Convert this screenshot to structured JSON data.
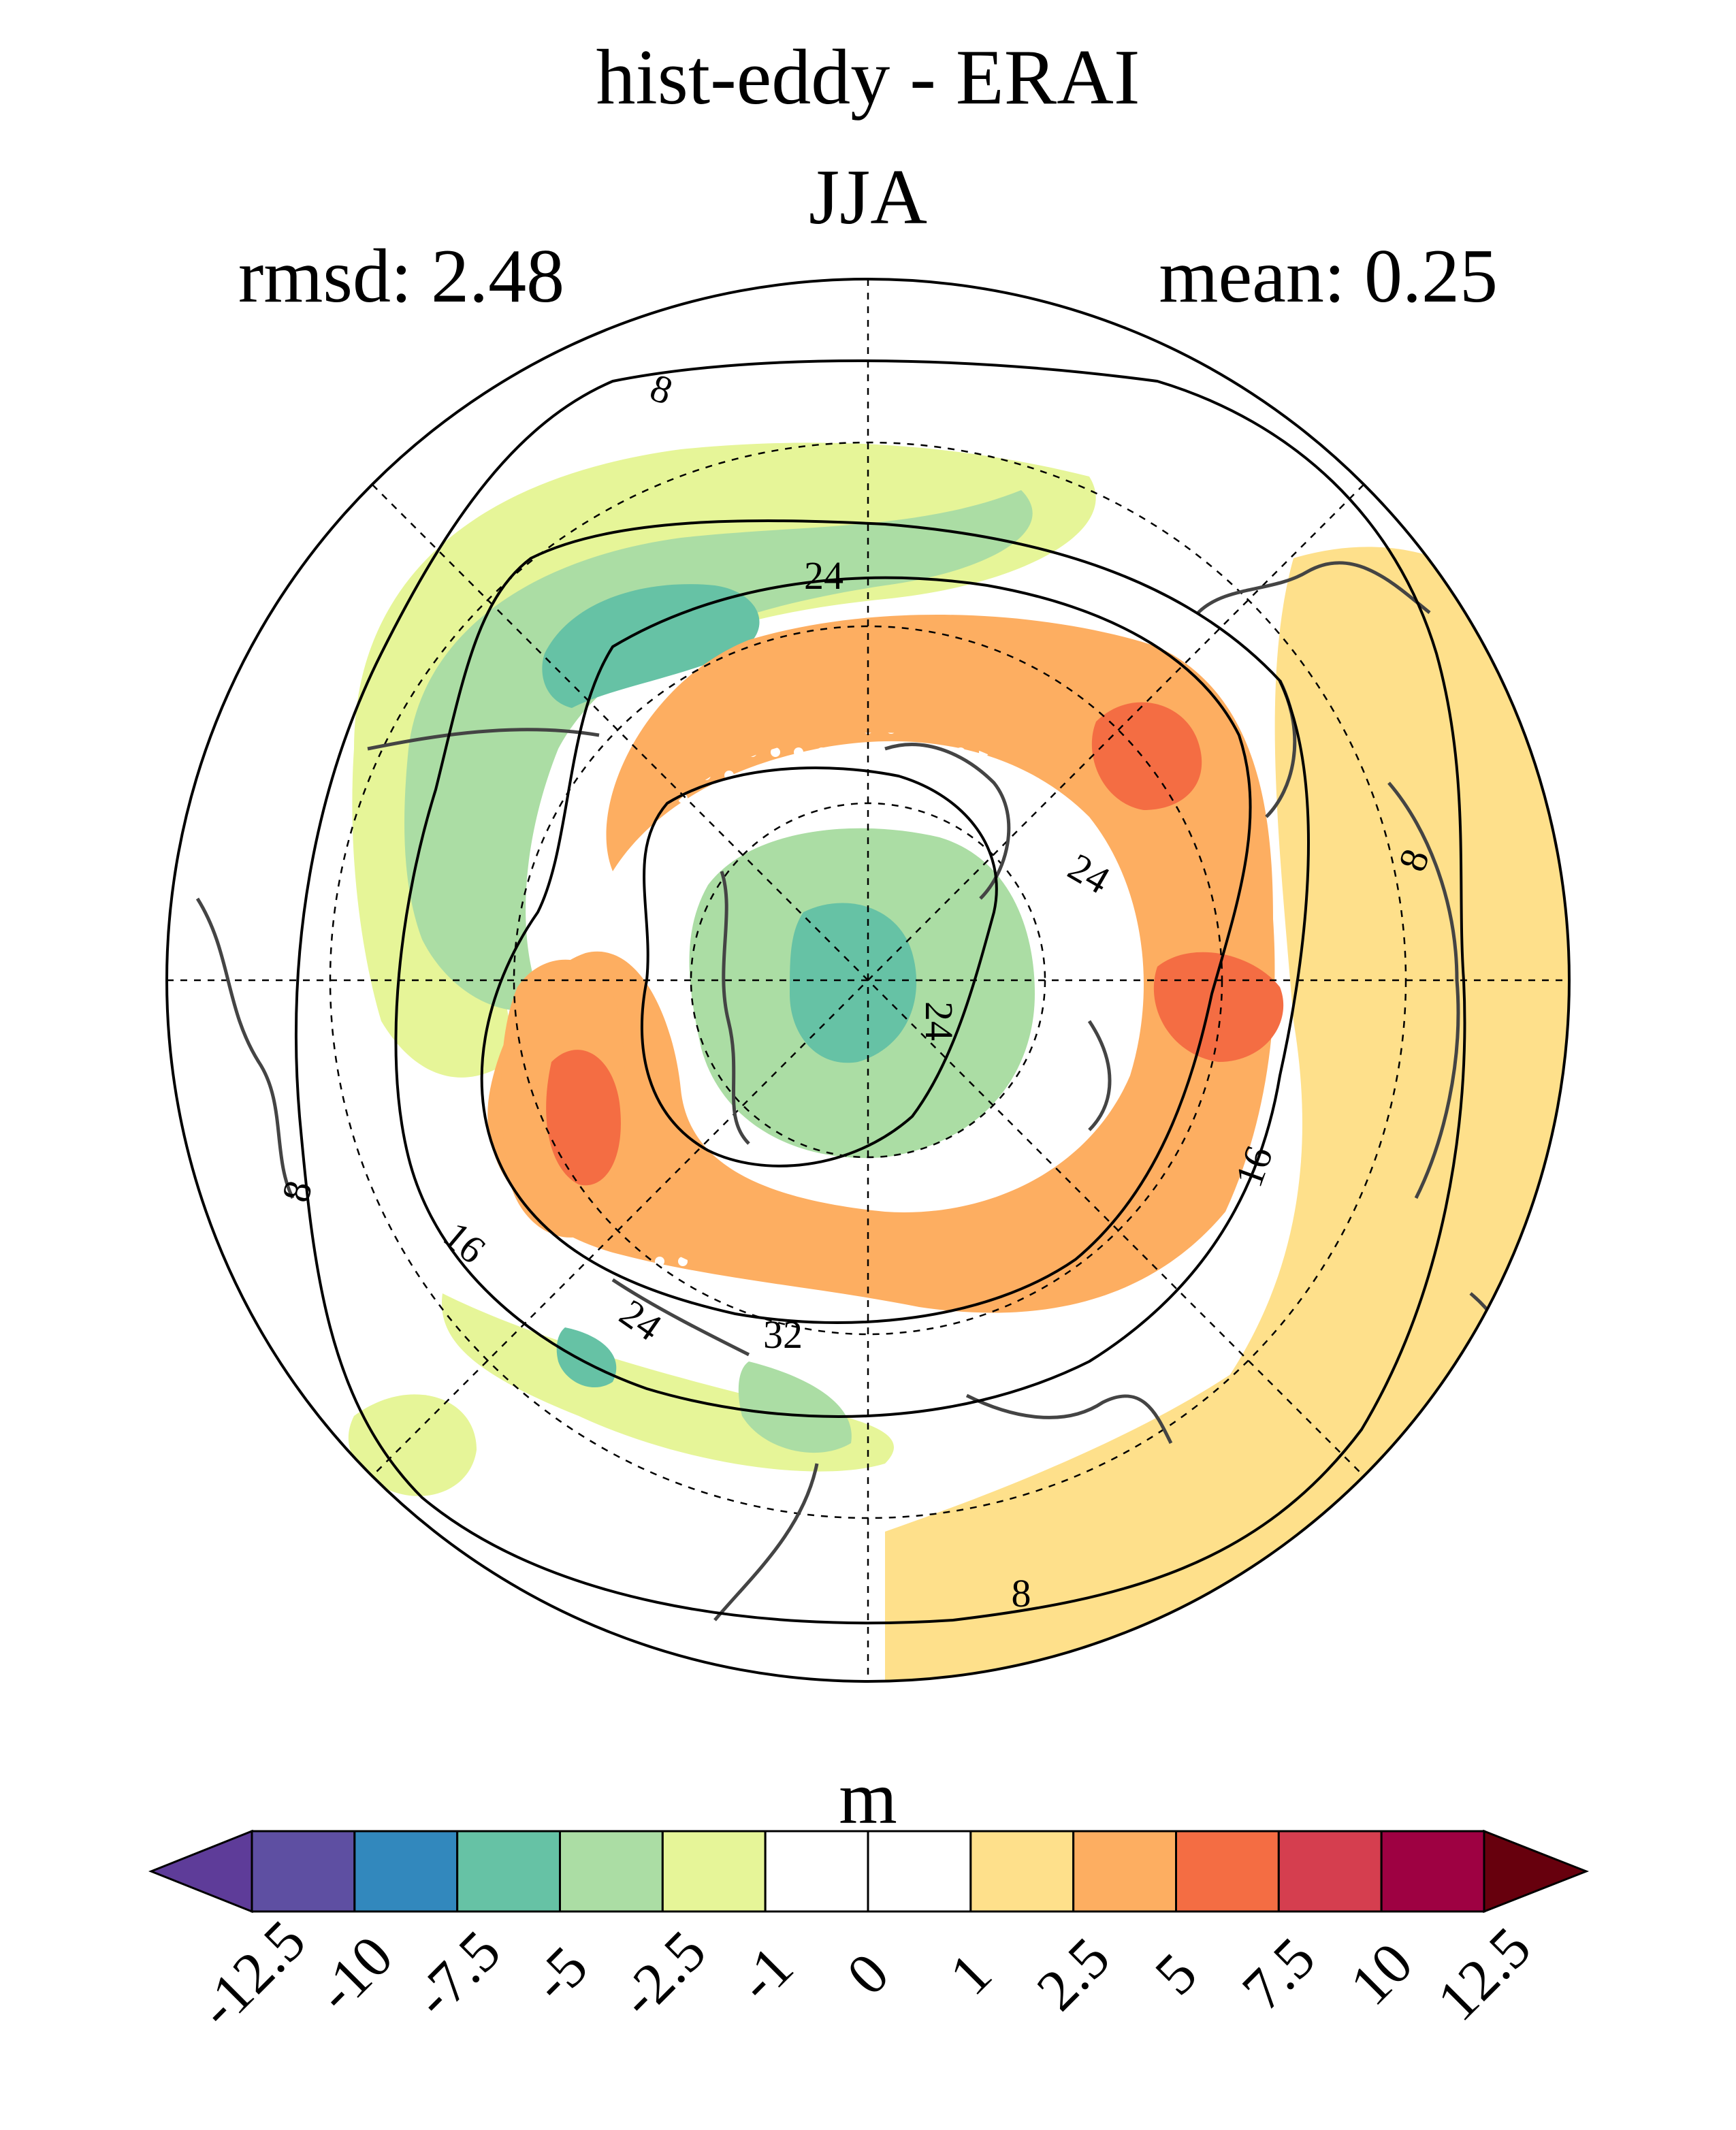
{
  "figure": {
    "title": "hist-eddy - ERAI",
    "season": "JJA",
    "rmsd_label": "rmsd: 2.48",
    "mean_label": "mean: 0.25"
  },
  "map": {
    "projection": "north-polar-stereographic",
    "hatching": "white dots mark non-significant differences",
    "contour_labels": [
      {
        "id": "c8-top",
        "text": "8"
      },
      {
        "id": "c24-top",
        "text": "24"
      },
      {
        "id": "c24-east",
        "text": "24"
      },
      {
        "id": "c8-east",
        "text": "8"
      },
      {
        "id": "c24-pole",
        "text": "24"
      },
      {
        "id": "c16-east",
        "text": "16"
      },
      {
        "id": "c8-west",
        "text": "8"
      },
      {
        "id": "c16-sw",
        "text": "16"
      },
      {
        "id": "c24-sw",
        "text": "24"
      },
      {
        "id": "c32-s",
        "text": "32"
      },
      {
        "id": "c8-south",
        "text": "8"
      }
    ]
  },
  "colorbar": {
    "units": "m",
    "tick_labels": [
      "-12.5",
      "-10",
      "-7.5",
      "-5",
      "-2.5",
      "-1",
      "0",
      "1",
      "2.5",
      "5",
      "7.5",
      "10",
      "12.5"
    ],
    "colors": [
      "#5e3c99",
      "#5e4fa2",
      "#3288bd",
      "#66c2a5",
      "#abdda4",
      "#e6f598",
      "#ffffff",
      "#ffffff",
      "#fee08b",
      "#fdae61",
      "#f46d43",
      "#d53e4f",
      "#9e0142",
      "#67000d"
    ],
    "extend": "both"
  }
}
